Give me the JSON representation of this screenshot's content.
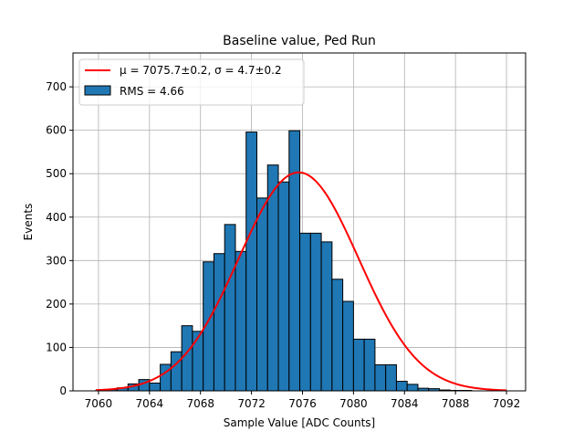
{
  "chart_data": {
    "type": "bar",
    "title": "Baseline value, Ped Run",
    "xlabel": "Sample Value [ADC Counts]",
    "ylabel": "Events",
    "xlim": [
      7058,
      7093.5
    ],
    "ylim": [
      0,
      778
    ],
    "x_ticks": [
      7060,
      7064,
      7068,
      7072,
      7076,
      7080,
      7084,
      7088,
      7092
    ],
    "y_ticks": [
      0,
      100,
      200,
      300,
      400,
      500,
      600,
      700
    ],
    "grid": true,
    "legend_position": "upper-left",
    "bar_color": "#1f77b4",
    "fit_color": "#ff0000",
    "bin_width": 0.8421,
    "bin_edges_start": 7059.79,
    "counts": [
      1,
      3,
      7,
      16,
      26,
      18,
      61,
      90,
      150,
      137,
      297,
      316,
      383,
      321,
      596,
      444,
      520,
      481,
      599,
      363,
      363,
      343,
      257,
      206,
      119,
      119,
      60,
      60,
      22,
      15,
      6,
      5,
      2,
      1,
      1
    ],
    "fit": {
      "mu": 7075.7,
      "sigma": 4.7,
      "amplitude": 503
    },
    "legend": [
      {
        "type": "line",
        "label": "μ = 7075.7±0.2, σ = 4.7±0.2",
        "color": "#ff0000"
      },
      {
        "type": "patch",
        "label": "RMS = 4.66",
        "color": "#1f77b4"
      }
    ]
  }
}
